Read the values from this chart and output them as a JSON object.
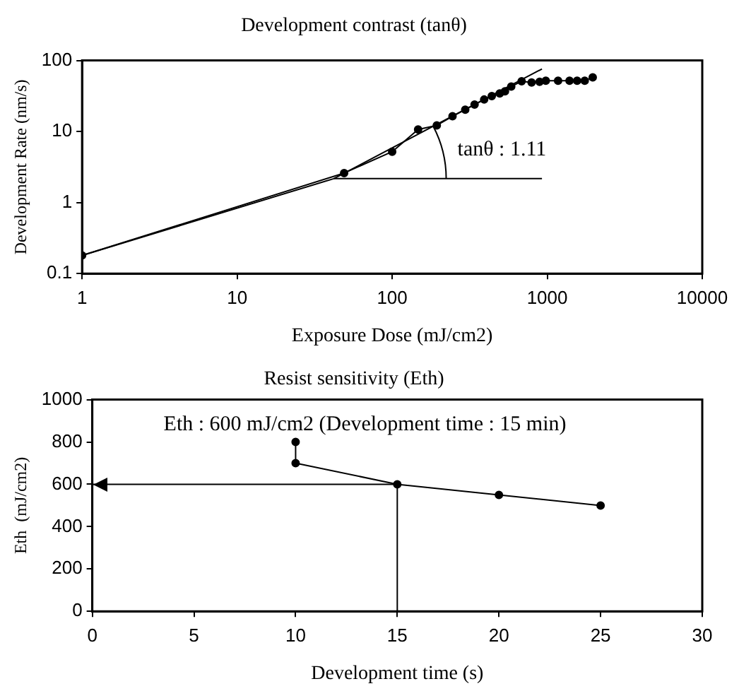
{
  "chart_data": [
    {
      "type": "line",
      "title": "Development contrast (tanθ)",
      "xlabel": "Exposure Dose (mJ/cm2)",
      "ylabel": "Development Rate (nm/s)",
      "log": "xy",
      "xlim": [
        1,
        10000
      ],
      "ylim": [
        0.1,
        100
      ],
      "xticks": [
        1,
        10,
        100,
        1000,
        10000
      ],
      "yticks": [
        0.1,
        1,
        10,
        100
      ],
      "annotations": [
        "tanθ : 1.11"
      ],
      "series": [
        {
          "type": "line",
          "color": "#000000",
          "marker": "circle",
          "x": [
            1,
            49,
            100,
            147,
            194,
            245,
            296,
            340,
            392,
            439,
            494,
            534,
            586,
            684,
            793,
            893,
            979,
            1175,
            1393,
            1559,
            1746,
            1966
          ],
          "values": [
            0.18,
            2.6,
            5.2,
            10.7,
            12.2,
            16.4,
            20.3,
            23.9,
            28.2,
            31.6,
            34.3,
            36.7,
            43,
            51,
            49,
            50,
            52,
            52,
            52,
            52,
            52,
            58
          ]
        },
        {
          "type": "line",
          "color": "#000000",
          "marker": "none",
          "x": [
            1,
            42,
            925
          ],
          "values": [
            0.18,
            2.17,
            76
          ]
        },
        {
          "type": "line",
          "color": "#000000",
          "marker": "none",
          "x": [
            42,
            925
          ],
          "values": [
            2.17,
            2.17
          ]
        }
      ]
    },
    {
      "type": "line",
      "title": "Resist sensitivity (Eth)",
      "xlabel": "Development time (s)",
      "ylabel": "Eth  (mJ/cm2)",
      "xlim": [
        0,
        30
      ],
      "ylim": [
        0,
        1000
      ],
      "xticks": [
        0,
        5,
        10,
        15,
        20,
        25,
        30
      ],
      "yticks": [
        0,
        200,
        400,
        600,
        800,
        1000
      ],
      "annotations": [
        "Eth : 600 mJ/cm2 (Development time : 15 min)"
      ],
      "series": [
        {
          "type": "line",
          "color": "#000000",
          "marker": "circle",
          "x": [
            10,
            10,
            15,
            20,
            25
          ],
          "values": [
            800,
            700,
            600,
            550,
            500
          ]
        },
        {
          "type": "line",
          "color": "#000000",
          "marker": "none",
          "x": [
            15,
            0
          ],
          "values": [
            600,
            600
          ]
        },
        {
          "type": "line",
          "color": "#000000",
          "marker": "none",
          "x": [
            15,
            15
          ],
          "values": [
            600,
            0
          ]
        }
      ]
    }
  ]
}
